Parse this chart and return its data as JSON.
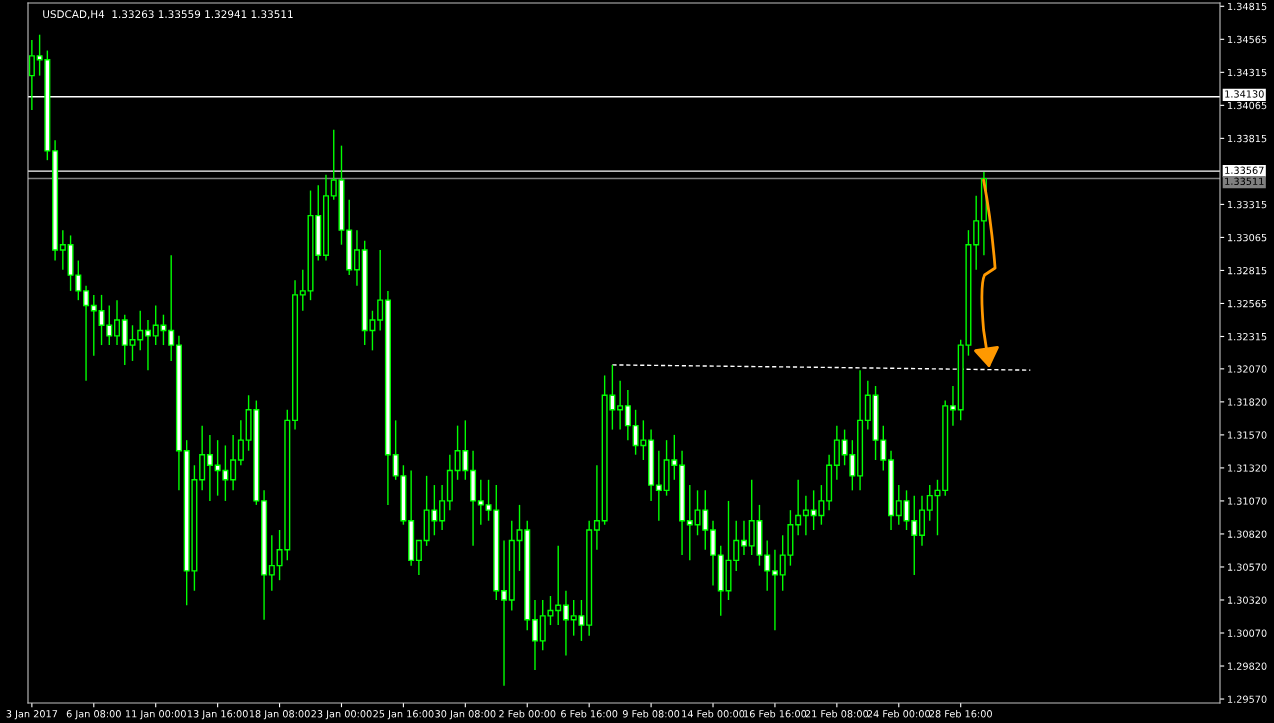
{
  "chart_data": {
    "type": "candlestick",
    "title": "USDCAD,H4  1.33263 1.33559 1.32941 1.33511",
    "color": "#00ff00",
    "categories": [
      "3 Jan 2017",
      null,
      null,
      null,
      null,
      null,
      null,
      null,
      "6 Jan 08:00",
      null,
      null,
      null,
      null,
      null,
      null,
      null,
      "11 Jan 00:00",
      null,
      null,
      null,
      null,
      null,
      null,
      null,
      "13 Jan 16:00",
      null,
      null,
      null,
      null,
      null,
      null,
      null,
      "18 Jan 08:00",
      null,
      null,
      null,
      null,
      null,
      null,
      null,
      "23 Jan 00:00",
      null,
      null,
      null,
      null,
      null,
      null,
      null,
      "25 Jan 16:00",
      null,
      null,
      null,
      null,
      null,
      null,
      null,
      "30 Jan 08:00",
      null,
      null,
      null,
      null,
      null,
      null,
      null,
      "2 Feb 00:00",
      null,
      null,
      null,
      null,
      null,
      null,
      null,
      "6 Feb 16:00",
      null,
      null,
      null,
      null,
      null,
      null,
      null,
      "9 Feb 08:00",
      null,
      null,
      null,
      null,
      null,
      null,
      null,
      "14 Feb 00:00",
      null,
      null,
      null,
      null,
      null,
      null,
      null,
      "16 Feb 16:00",
      null,
      null,
      null,
      null,
      null,
      null,
      null,
      "21 Feb 08:00",
      null,
      null,
      null,
      null,
      null,
      null,
      null,
      "24 Feb 00:00",
      null,
      null,
      null,
      null,
      null,
      null,
      null,
      "28 Feb 16:00",
      null,
      null,
      null,
      null,
      null,
      null,
      null,
      null,
      null,
      null,
      null,
      null,
      null,
      null,
      null,
      null,
      null,
      null,
      null,
      null,
      null,
      null,
      null,
      null,
      null,
      null,
      null,
      null,
      null,
      null,
      null,
      null,
      null
    ],
    "ohlc": [
      [
        1.3429,
        1.3456,
        1.3403,
        1.3444
      ],
      [
        1.3444,
        1.346,
        1.3429,
        1.3441
      ],
      [
        1.3441,
        1.3448,
        1.3365,
        1.3372
      ],
      [
        1.3372,
        1.338,
        1.3289,
        1.3297
      ],
      [
        1.3297,
        1.3312,
        1.3282,
        1.3301
      ],
      [
        1.3301,
        1.3308,
        1.3266,
        1.3278
      ],
      [
        1.3278,
        1.3289,
        1.3259,
        1.3266
      ],
      [
        1.3266,
        1.327,
        1.3198,
        1.3255
      ],
      [
        1.3255,
        1.3263,
        1.3217,
        1.3251
      ],
      [
        1.3251,
        1.3263,
        1.3225,
        1.324
      ],
      [
        1.324,
        1.3255,
        1.3225,
        1.3232
      ],
      [
        1.3232,
        1.3259,
        1.3225,
        1.3244
      ],
      [
        1.3244,
        1.3248,
        1.321,
        1.3225
      ],
      [
        1.3225,
        1.324,
        1.3213,
        1.3229
      ],
      [
        1.3229,
        1.3251,
        1.3221,
        1.3236
      ],
      [
        1.3236,
        1.3244,
        1.3206,
        1.3232
      ],
      [
        1.3232,
        1.3255,
        1.3225,
        1.324
      ],
      [
        1.324,
        1.3248,
        1.3225,
        1.3236
      ],
      [
        1.3236,
        1.3293,
        1.3213,
        1.3225
      ],
      [
        1.3225,
        1.3232,
        1.3115,
        1.3145
      ],
      [
        1.3145,
        1.3153,
        1.3028,
        1.3054
      ],
      [
        1.3054,
        1.3134,
        1.3039,
        1.3123
      ],
      [
        1.3123,
        1.3164,
        1.3115,
        1.3142
      ],
      [
        1.3142,
        1.3157,
        1.3107,
        1.3134
      ],
      [
        1.3134,
        1.3153,
        1.3111,
        1.313
      ],
      [
        1.313,
        1.3149,
        1.3107,
        1.3123
      ],
      [
        1.3123,
        1.3157,
        1.3115,
        1.3138
      ],
      [
        1.3138,
        1.3168,
        1.3134,
        1.3153
      ],
      [
        1.3153,
        1.3187,
        1.3145,
        1.3176
      ],
      [
        1.3176,
        1.3183,
        1.3104,
        1.3107
      ],
      [
        1.3107,
        1.3115,
        1.3017,
        1.3051
      ],
      [
        1.3051,
        1.3081,
        1.3039,
        1.3058
      ],
      [
        1.3058,
        1.3085,
        1.3047,
        1.307
      ],
      [
        1.307,
        1.3176,
        1.3062,
        1.3168
      ],
      [
        1.3168,
        1.3274,
        1.3161,
        1.3263
      ],
      [
        1.3263,
        1.3282,
        1.3251,
        1.3266
      ],
      [
        1.3266,
        1.3342,
        1.3259,
        1.3323
      ],
      [
        1.3323,
        1.3346,
        1.3289,
        1.3293
      ],
      [
        1.3293,
        1.3354,
        1.3289,
        1.3338
      ],
      [
        1.3338,
        1.3388,
        1.3335,
        1.335
      ],
      [
        1.335,
        1.3376,
        1.3301,
        1.3312
      ],
      [
        1.3312,
        1.3335,
        1.3278,
        1.3282
      ],
      [
        1.3282,
        1.3312,
        1.327,
        1.3297
      ],
      [
        1.3297,
        1.3304,
        1.3225,
        1.3236
      ],
      [
        1.3236,
        1.3251,
        1.3221,
        1.3244
      ],
      [
        1.3244,
        1.3297,
        1.3236,
        1.3259
      ],
      [
        1.3259,
        1.3266,
        1.3104,
        1.3142
      ],
      [
        1.3142,
        1.3168,
        1.3123,
        1.3126
      ],
      [
        1.3126,
        1.3134,
        1.3089,
        1.3092
      ],
      [
        1.3092,
        1.313,
        1.3058,
        1.3062
      ],
      [
        1.3062,
        1.3077,
        1.3051,
        1.3077
      ],
      [
        1.3077,
        1.3126,
        1.3073,
        1.31
      ],
      [
        1.31,
        1.3119,
        1.3081,
        1.3092
      ],
      [
        1.3092,
        1.3119,
        1.3085,
        1.3107
      ],
      [
        1.3107,
        1.3142,
        1.31,
        1.313
      ],
      [
        1.313,
        1.3164,
        1.3123,
        1.3145
      ],
      [
        1.3145,
        1.3168,
        1.3123,
        1.313
      ],
      [
        1.313,
        1.3145,
        1.3073,
        1.3107
      ],
      [
        1.3107,
        1.3123,
        1.3089,
        1.3104
      ],
      [
        1.3104,
        1.3123,
        1.3092,
        1.31
      ],
      [
        1.31,
        1.3119,
        1.3032,
        1.3039
      ],
      [
        1.3039,
        1.3077,
        1.2967,
        1.3032
      ],
      [
        1.3032,
        1.3092,
        1.3024,
        1.3077
      ],
      [
        1.3077,
        1.3104,
        1.3054,
        1.3085
      ],
      [
        1.3085,
        1.3092,
        1.3009,
        1.3017
      ],
      [
        1.3017,
        1.3032,
        1.2979,
        1.3001
      ],
      [
        1.3001,
        1.3032,
        1.2994,
        1.302
      ],
      [
        1.302,
        1.3035,
        1.3013,
        1.3024
      ],
      [
        1.3024,
        1.3073,
        1.3013,
        1.3028
      ],
      [
        1.3028,
        1.3039,
        1.299,
        1.3017
      ],
      [
        1.3017,
        1.3032,
        1.3005,
        1.302
      ],
      [
        1.302,
        1.3032,
        1.3001,
        1.3013
      ],
      [
        1.3013,
        1.3092,
        1.3005,
        1.3085
      ],
      [
        1.3085,
        1.3134,
        1.307,
        1.3092
      ],
      [
        1.3092,
        1.3202,
        1.3089,
        1.3187
      ],
      [
        1.3187,
        1.321,
        1.3161,
        1.3176
      ],
      [
        1.3176,
        1.3198,
        1.3161,
        1.3179
      ],
      [
        1.3179,
        1.3191,
        1.3153,
        1.3164
      ],
      [
        1.3164,
        1.3176,
        1.3142,
        1.3149
      ],
      [
        1.3149,
        1.3168,
        1.3138,
        1.3153
      ],
      [
        1.3153,
        1.3161,
        1.3107,
        1.3119
      ],
      [
        1.3119,
        1.3145,
        1.3092,
        1.3115
      ],
      [
        1.3115,
        1.3153,
        1.3111,
        1.3138
      ],
      [
        1.3138,
        1.3157,
        1.3123,
        1.3134
      ],
      [
        1.3134,
        1.3145,
        1.3066,
        1.3092
      ],
      [
        1.3092,
        1.3119,
        1.3062,
        1.3089
      ],
      [
        1.3089,
        1.3115,
        1.3081,
        1.31
      ],
      [
        1.31,
        1.3115,
        1.307,
        1.3085
      ],
      [
        1.3085,
        1.3092,
        1.3043,
        1.3066
      ],
      [
        1.3066,
        1.3073,
        1.302,
        1.3039
      ],
      [
        1.3039,
        1.3107,
        1.3032,
        1.3062
      ],
      [
        1.3062,
        1.3092,
        1.3054,
        1.3077
      ],
      [
        1.3077,
        1.3092,
        1.3066,
        1.3073
      ],
      [
        1.3073,
        1.3123,
        1.3066,
        1.3092
      ],
      [
        1.3092,
        1.3104,
        1.3058,
        1.3066
      ],
      [
        1.3066,
        1.3077,
        1.3039,
        1.3054
      ],
      [
        1.3054,
        1.307,
        1.3009,
        1.3051
      ],
      [
        1.3051,
        1.3081,
        1.3039,
        1.3066
      ],
      [
        1.3066,
        1.31,
        1.3058,
        1.3089
      ],
      [
        1.3089,
        1.3123,
        1.3081,
        1.3096
      ],
      [
        1.3096,
        1.3111,
        1.3081,
        1.31
      ],
      [
        1.31,
        1.3115,
        1.3085,
        1.3096
      ],
      [
        1.3096,
        1.3119,
        1.3089,
        1.3107
      ],
      [
        1.3107,
        1.3142,
        1.31,
        1.3134
      ],
      [
        1.3134,
        1.3164,
        1.3123,
        1.3153
      ],
      [
        1.3153,
        1.3161,
        1.3134,
        1.3142
      ],
      [
        1.3142,
        1.3153,
        1.3115,
        1.3126
      ],
      [
        1.3126,
        1.3206,
        1.3115,
        1.3168
      ],
      [
        1.3168,
        1.3198,
        1.3161,
        1.3187
      ],
      [
        1.3187,
        1.3194,
        1.3138,
        1.3153
      ],
      [
        1.3153,
        1.3164,
        1.313,
        1.3138
      ],
      [
        1.3138,
        1.3145,
        1.3085,
        1.3096
      ],
      [
        1.3096,
        1.3119,
        1.3089,
        1.3107
      ],
      [
        1.3107,
        1.3115,
        1.3085,
        1.3092
      ],
      [
        1.3092,
        1.3111,
        1.3051,
        1.3081
      ],
      [
        1.3081,
        1.3111,
        1.3073,
        1.31
      ],
      [
        1.31,
        1.3119,
        1.3092,
        1.3111
      ],
      [
        1.3111,
        1.3123,
        1.3081,
        1.3115
      ],
      [
        1.3115,
        1.3183,
        1.3111,
        1.3179
      ],
      [
        1.3179,
        1.3194,
        1.3164,
        1.3176
      ],
      [
        1.3176,
        1.3229,
        1.3168,
        1.3225
      ],
      [
        1.3225,
        1.3312,
        1.3217,
        1.3301
      ],
      [
        1.3301,
        1.3338,
        1.3282,
        1.3319
      ],
      [
        1.3319,
        1.3356,
        1.3293,
        1.3351
      ],
      null,
      null,
      null,
      null,
      null,
      null,
      null,
      null,
      null,
      null,
      null,
      null,
      null,
      null,
      null,
      null,
      null,
      null,
      null,
      null,
      null,
      null,
      null,
      null,
      null,
      null,
      null,
      null,
      null,
      null
    ],
    "series": [
      {
        "type": "line",
        "color": "#ffffff",
        "line_style": "dashed",
        "values": [
          null,
          null,
          null,
          null,
          null,
          null,
          null,
          null,
          null,
          null,
          null,
          null,
          null,
          null,
          null,
          null,
          null,
          null,
          null,
          null,
          null,
          null,
          null,
          null,
          null,
          null,
          null,
          null,
          null,
          null,
          null,
          null,
          null,
          null,
          null,
          null,
          null,
          null,
          null,
          null,
          null,
          null,
          null,
          null,
          null,
          null,
          null,
          null,
          null,
          null,
          null,
          null,
          null,
          null,
          null,
          null,
          null,
          null,
          null,
          null,
          null,
          null,
          null,
          null,
          null,
          null,
          null,
          null,
          null,
          null,
          null,
          null,
          null,
          null,
          null,
          1.321,
          null,
          null,
          null,
          null,
          null,
          null,
          null,
          null,
          null,
          null,
          null,
          null,
          null,
          null,
          null,
          null,
          null,
          null,
          null,
          null,
          null,
          null,
          null,
          null,
          null,
          null,
          null,
          null,
          1.3208,
          null,
          null,
          null,
          null,
          null,
          null,
          null,
          null,
          null,
          null,
          null,
          null,
          null,
          null,
          null,
          null,
          null,
          null,
          null,
          null,
          null,
          null,
          null,
          null,
          1.3206,
          null,
          null,
          null,
          null,
          null,
          null,
          null,
          null,
          null,
          null,
          null,
          null,
          null,
          null,
          null,
          null,
          null,
          null,
          null,
          null,
          null,
          null,
          null,
          null
        ]
      }
    ],
    "ref_lines": [
      {
        "axis": "y",
        "value": 1.3413,
        "label": "1.34130",
        "color": "#ffffff"
      },
      {
        "axis": "y",
        "value": 1.33567,
        "label": "1.33567",
        "color": "#ffffff"
      },
      {
        "axis": "y",
        "value": 1.33511,
        "label": "1.33511",
        "color": "#808080"
      }
    ],
    "ylim": [
      1.2954,
      1.3484
    ],
    "yticks": [
      {
        "value": 1.34815,
        "label": "1.34815"
      },
      {
        "value": 1.34565,
        "label": "1.34565"
      },
      {
        "value": 1.34315,
        "label": "1.34315"
      },
      {
        "value": 1.34065,
        "label": "1.34065"
      },
      {
        "value": 1.33815,
        "label": "1.33815"
      },
      {
        "value": 1.33315,
        "label": "1.33315"
      },
      {
        "value": 1.33065,
        "label": "1.33065"
      },
      {
        "value": 1.32815,
        "label": "1.32815"
      },
      {
        "value": 1.32565,
        "label": "1.32565"
      },
      {
        "value": 1.32315,
        "label": "1.32315"
      },
      {
        "value": 1.3207,
        "label": "1.32070"
      },
      {
        "value": 1.3182,
        "label": "1.31820"
      },
      {
        "value": 1.3157,
        "label": "1.31570"
      },
      {
        "value": 1.3132,
        "label": "1.31320"
      },
      {
        "value": 1.3107,
        "label": "1.31070"
      },
      {
        "value": 1.3082,
        "label": "1.30820"
      },
      {
        "value": 1.3057,
        "label": "1.30570"
      },
      {
        "value": 1.3032,
        "label": "1.30320"
      },
      {
        "value": 1.3007,
        "label": "1.30070"
      },
      {
        "value": 1.2982,
        "label": "1.29820"
      },
      {
        "value": 1.2957,
        "label": "1.29570"
      }
    ]
  }
}
